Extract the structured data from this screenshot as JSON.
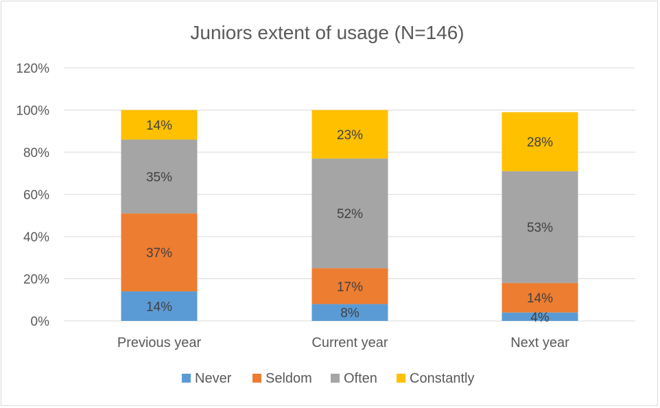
{
  "chart_data": {
    "type": "bar",
    "stacked": true,
    "title": "Juniors extent of usage (N=146)",
    "xlabel": "",
    "ylabel": "",
    "ylim": [
      0,
      120
    ],
    "y_ticks": [
      "0%",
      "20%",
      "40%",
      "60%",
      "80%",
      "100%",
      "120%"
    ],
    "grid": true,
    "legend_position": "bottom",
    "categories": [
      "Previous year",
      "Current year",
      "Next year"
    ],
    "series": [
      {
        "name": "Never",
        "color": "#5b9bd5",
        "values": [
          14,
          8,
          4
        ],
        "labels": [
          "14%",
          "8%",
          "4%"
        ]
      },
      {
        "name": "Seldom",
        "color": "#ed7d31",
        "values": [
          37,
          17,
          14
        ],
        "labels": [
          "37%",
          "17%",
          "14%"
        ]
      },
      {
        "name": "Often",
        "color": "#a5a5a5",
        "values": [
          35,
          52,
          53
        ],
        "labels": [
          "35%",
          "52%",
          "53%"
        ]
      },
      {
        "name": "Constantly",
        "color": "#ffc000",
        "values": [
          14,
          23,
          28
        ],
        "labels": [
          "14%",
          "23%",
          "28%"
        ]
      }
    ]
  }
}
